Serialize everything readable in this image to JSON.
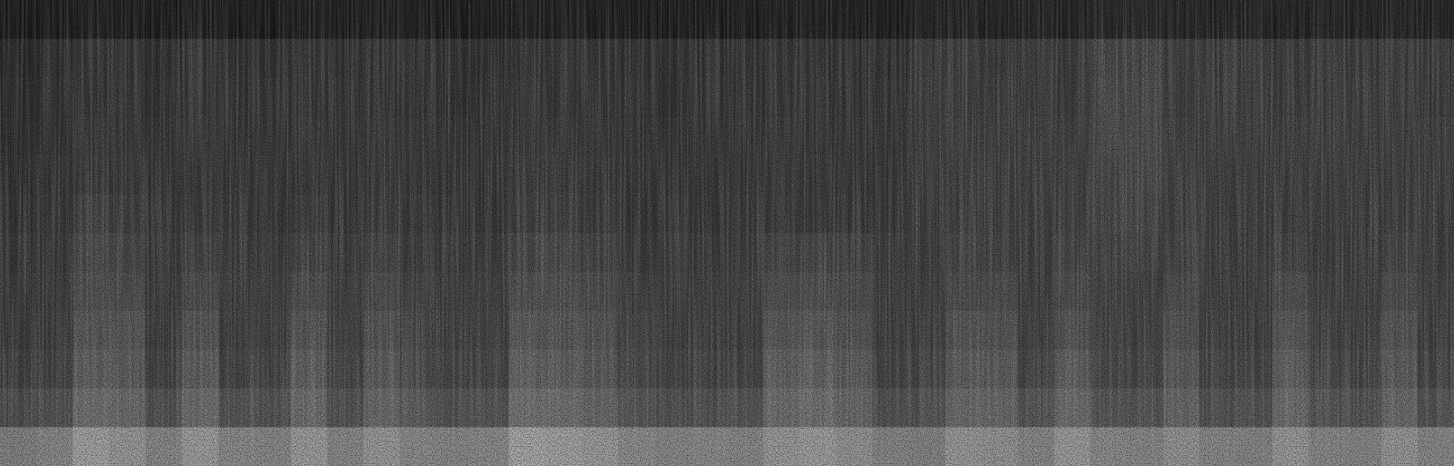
{
  "chart_data": {
    "type": "heatmap",
    "tick_labels": false,
    "grid": false,
    "color": "#ffffff",
    "zlim": [
      0,
      1
    ],
    "cells": [
      [
        0.1,
        0.1,
        0.12,
        0.11,
        0.1,
        0.12,
        0.11,
        0.1,
        0.12,
        0.11,
        0.12,
        0.11,
        0.1,
        0.11,
        0.12,
        0.12,
        0.11,
        0.1,
        0.11,
        0.1,
        0.11,
        0.12,
        0.12,
        0.11,
        0.1,
        0.13,
        0.14,
        0.13,
        0.14,
        0.13,
        0.15,
        0.15,
        0.14,
        0.13,
        0.14,
        0.13,
        0.14,
        0.13,
        0.14,
        0.13
      ],
      [
        0.17,
        0.19,
        0.22,
        0.21,
        0.19,
        0.22,
        0.2,
        0.2,
        0.22,
        0.2,
        0.22,
        0.21,
        0.2,
        0.2,
        0.22,
        0.22,
        0.21,
        0.2,
        0.2,
        0.2,
        0.21,
        0.22,
        0.21,
        0.21,
        0.2,
        0.24,
        0.25,
        0.24,
        0.25,
        0.24,
        0.29,
        0.29,
        0.25,
        0.24,
        0.25,
        0.24,
        0.25,
        0.24,
        0.25,
        0.24
      ],
      [
        0.18,
        0.2,
        0.22,
        0.22,
        0.2,
        0.22,
        0.21,
        0.21,
        0.22,
        0.21,
        0.22,
        0.21,
        0.2,
        0.21,
        0.23,
        0.22,
        0.22,
        0.21,
        0.2,
        0.21,
        0.21,
        0.22,
        0.22,
        0.21,
        0.21,
        0.25,
        0.25,
        0.25,
        0.25,
        0.24,
        0.3,
        0.3,
        0.25,
        0.25,
        0.25,
        0.24,
        0.25,
        0.25,
        0.25,
        0.24
      ],
      [
        0.18,
        0.2,
        0.23,
        0.22,
        0.21,
        0.23,
        0.21,
        0.21,
        0.23,
        0.21,
        0.23,
        0.22,
        0.21,
        0.21,
        0.23,
        0.23,
        0.22,
        0.21,
        0.21,
        0.21,
        0.22,
        0.23,
        0.22,
        0.22,
        0.21,
        0.25,
        0.26,
        0.25,
        0.26,
        0.25,
        0.3,
        0.3,
        0.26,
        0.25,
        0.25,
        0.25,
        0.26,
        0.25,
        0.25,
        0.25
      ],
      [
        0.19,
        0.21,
        0.24,
        0.23,
        0.21,
        0.23,
        0.22,
        0.22,
        0.23,
        0.22,
        0.23,
        0.22,
        0.21,
        0.22,
        0.24,
        0.24,
        0.23,
        0.22,
        0.21,
        0.22,
        0.22,
        0.23,
        0.23,
        0.22,
        0.22,
        0.25,
        0.26,
        0.26,
        0.25,
        0.25,
        0.29,
        0.3,
        0.26,
        0.25,
        0.25,
        0.25,
        0.26,
        0.25,
        0.25,
        0.25
      ],
      [
        0.2,
        0.22,
        0.27,
        0.26,
        0.22,
        0.24,
        0.23,
        0.22,
        0.25,
        0.22,
        0.24,
        0.23,
        0.22,
        0.22,
        0.25,
        0.25,
        0.24,
        0.22,
        0.22,
        0.22,
        0.23,
        0.24,
        0.24,
        0.23,
        0.22,
        0.25,
        0.26,
        0.26,
        0.25,
        0.25,
        0.29,
        0.29,
        0.26,
        0.25,
        0.25,
        0.25,
        0.26,
        0.25,
        0.25,
        0.25
      ],
      [
        0.22,
        0.23,
        0.3,
        0.29,
        0.23,
        0.27,
        0.24,
        0.24,
        0.28,
        0.24,
        0.27,
        0.25,
        0.24,
        0.24,
        0.29,
        0.29,
        0.27,
        0.24,
        0.24,
        0.24,
        0.24,
        0.28,
        0.29,
        0.27,
        0.24,
        0.25,
        0.28,
        0.27,
        0.25,
        0.27,
        0.28,
        0.28,
        0.28,
        0.25,
        0.25,
        0.27,
        0.25,
        0.25,
        0.27,
        0.25
      ],
      [
        0.23,
        0.24,
        0.32,
        0.31,
        0.24,
        0.3,
        0.25,
        0.25,
        0.31,
        0.25,
        0.3,
        0.27,
        0.25,
        0.25,
        0.32,
        0.32,
        0.3,
        0.26,
        0.25,
        0.25,
        0.25,
        0.31,
        0.32,
        0.3,
        0.25,
        0.25,
        0.3,
        0.3,
        0.25,
        0.3,
        0.27,
        0.26,
        0.3,
        0.25,
        0.25,
        0.31,
        0.26,
        0.25,
        0.3,
        0.26
      ],
      [
        0.24,
        0.25,
        0.35,
        0.34,
        0.25,
        0.34,
        0.26,
        0.26,
        0.35,
        0.26,
        0.34,
        0.29,
        0.26,
        0.26,
        0.36,
        0.35,
        0.33,
        0.27,
        0.26,
        0.26,
        0.26,
        0.35,
        0.36,
        0.33,
        0.26,
        0.26,
        0.34,
        0.33,
        0.26,
        0.34,
        0.27,
        0.26,
        0.33,
        0.26,
        0.26,
        0.35,
        0.27,
        0.26,
        0.34,
        0.26
      ],
      [
        0.26,
        0.27,
        0.39,
        0.37,
        0.27,
        0.38,
        0.28,
        0.28,
        0.39,
        0.28,
        0.38,
        0.31,
        0.28,
        0.28,
        0.4,
        0.39,
        0.36,
        0.29,
        0.28,
        0.28,
        0.28,
        0.39,
        0.4,
        0.37,
        0.28,
        0.28,
        0.38,
        0.37,
        0.28,
        0.39,
        0.29,
        0.28,
        0.37,
        0.28,
        0.28,
        0.39,
        0.29,
        0.28,
        0.38,
        0.28
      ],
      [
        0.31,
        0.33,
        0.45,
        0.43,
        0.33,
        0.44,
        0.34,
        0.33,
        0.44,
        0.33,
        0.43,
        0.37,
        0.33,
        0.34,
        0.46,
        0.45,
        0.42,
        0.35,
        0.33,
        0.33,
        0.34,
        0.44,
        0.45,
        0.42,
        0.33,
        0.33,
        0.43,
        0.42,
        0.34,
        0.44,
        0.35,
        0.34,
        0.42,
        0.33,
        0.33,
        0.44,
        0.34,
        0.33,
        0.43,
        0.33
      ],
      [
        0.52,
        0.55,
        0.66,
        0.62,
        0.55,
        0.64,
        0.56,
        0.55,
        0.63,
        0.55,
        0.62,
        0.56,
        0.55,
        0.56,
        0.68,
        0.66,
        0.63,
        0.57,
        0.55,
        0.56,
        0.55,
        0.62,
        0.64,
        0.6,
        0.54,
        0.53,
        0.62,
        0.6,
        0.55,
        0.63,
        0.56,
        0.55,
        0.6,
        0.55,
        0.54,
        0.62,
        0.55,
        0.54,
        0.61,
        0.55
      ]
    ]
  }
}
